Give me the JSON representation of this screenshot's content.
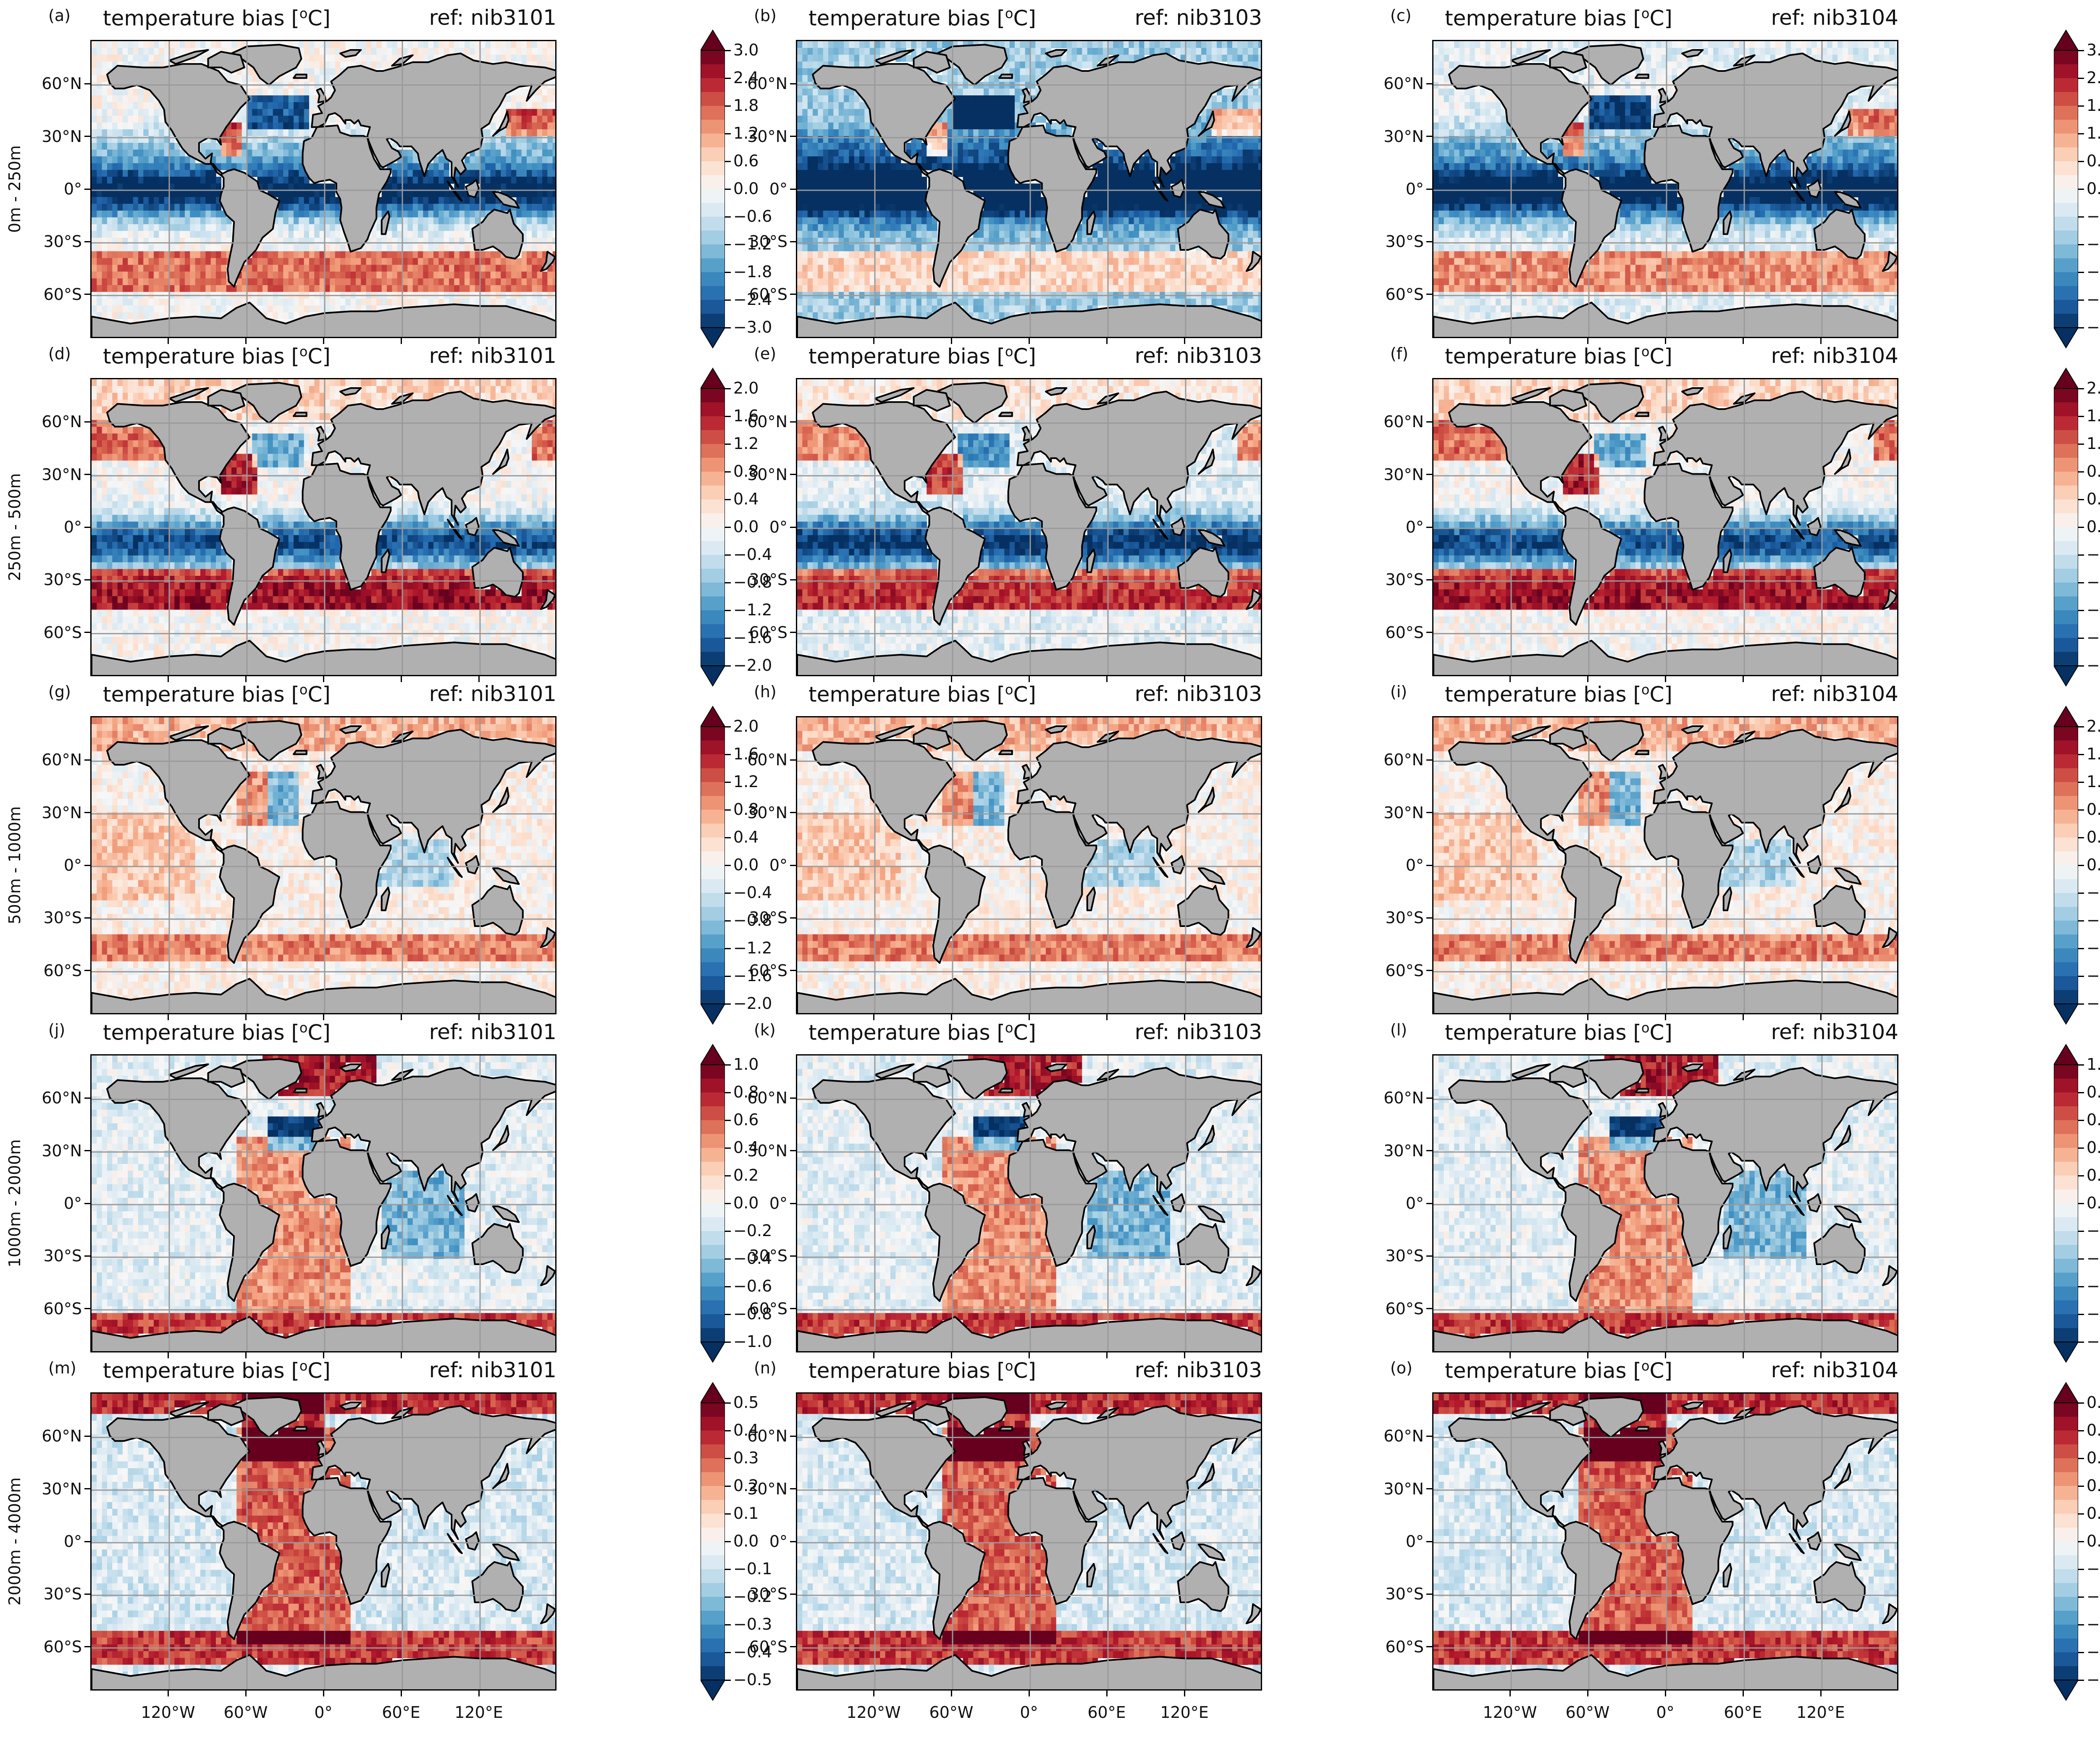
{
  "figure": {
    "panel_title": "temperature bias [",
    "unit_sup": "o",
    "unit_tail": "C]",
    "ref_prefix": "ref: ",
    "refs": [
      "nib3101",
      "nib3103",
      "nib3104"
    ],
    "panel_letters": [
      "(a)",
      "(b)",
      "(c)",
      "(d)",
      "(e)",
      "(f)",
      "(g)",
      "(h)",
      "(i)",
      "(j)",
      "(k)",
      "(l)",
      "(m)",
      "(n)",
      "(o)"
    ],
    "depth_labels": [
      "0m - 250m",
      "250m - 500m",
      "500m - 1000m",
      "1000m - 2000m",
      "2000m - 4000m"
    ],
    "lat_ticks": [
      "60°N",
      "30°N",
      "0°",
      "30°S",
      "60°S"
    ],
    "lat_values": [
      60,
      30,
      0,
      -30,
      -60
    ],
    "lon_ticks": [
      "120°W",
      "60°W",
      "0°",
      "60°E",
      "120°E"
    ],
    "lon_values": [
      -120,
      -60,
      0,
      60,
      120
    ],
    "land_color": "#b0b0b0",
    "colormap": "RdBu_r",
    "cmap_colors": [
      "#053061",
      "#2166ac",
      "#4393c3",
      "#92c5de",
      "#d1e5f0",
      "#f7f7f7",
      "#fddbc7",
      "#f4a582",
      "#d6604d",
      "#b2182b",
      "#67001f"
    ]
  },
  "chart_data": [
    {
      "type": "heatmap",
      "panel": "(a)",
      "row": 0,
      "col": 0,
      "depth": "0m - 250m",
      "ref": "nib3101",
      "colorbar": false
    },
    {
      "type": "heatmap",
      "panel": "(b)",
      "row": 0,
      "col": 1,
      "depth": "0m - 250m",
      "ref": "nib3103",
      "colorbar": true
    },
    {
      "type": "heatmap",
      "panel": "(c)",
      "row": 0,
      "col": 2,
      "depth": "0m - 250m",
      "ref": "nib3104",
      "colorbar": true
    },
    {
      "type": "heatmap",
      "panel": "(d)",
      "row": 1,
      "col": 0,
      "depth": "250m - 500m",
      "ref": "nib3101",
      "colorbar": false
    },
    {
      "type": "heatmap",
      "panel": "(e)",
      "row": 1,
      "col": 1,
      "depth": "250m - 500m",
      "ref": "nib3103",
      "colorbar": true
    },
    {
      "type": "heatmap",
      "panel": "(f)",
      "row": 1,
      "col": 2,
      "depth": "250m - 500m",
      "ref": "nib3104",
      "colorbar": true
    },
    {
      "type": "heatmap",
      "panel": "(g)",
      "row": 2,
      "col": 0,
      "depth": "500m - 1000m",
      "ref": "nib3101",
      "colorbar": false
    },
    {
      "type": "heatmap",
      "panel": "(h)",
      "row": 2,
      "col": 1,
      "depth": "500m - 1000m",
      "ref": "nib3103",
      "colorbar": true
    },
    {
      "type": "heatmap",
      "panel": "(i)",
      "row": 2,
      "col": 2,
      "depth": "500m - 1000m",
      "ref": "nib3104",
      "colorbar": true
    },
    {
      "type": "heatmap",
      "panel": "(j)",
      "row": 3,
      "col": 0,
      "depth": "1000m - 2000m",
      "ref": "nib3101",
      "colorbar": false
    },
    {
      "type": "heatmap",
      "panel": "(k)",
      "row": 3,
      "col": 1,
      "depth": "1000m - 2000m",
      "ref": "nib3103",
      "colorbar": true
    },
    {
      "type": "heatmap",
      "panel": "(l)",
      "row": 3,
      "col": 2,
      "depth": "1000m - 2000m",
      "ref": "nib3104",
      "colorbar": true
    },
    {
      "type": "heatmap",
      "panel": "(m)",
      "row": 4,
      "col": 0,
      "depth": "2000m - 4000m",
      "ref": "nib3101",
      "colorbar": false
    },
    {
      "type": "heatmap",
      "panel": "(n)",
      "row": 4,
      "col": 1,
      "depth": "2000m - 4000m",
      "ref": "nib3103",
      "colorbar": true
    },
    {
      "type": "heatmap",
      "panel": "(o)",
      "row": 4,
      "col": 2,
      "depth": "2000m - 4000m",
      "ref": "nib3104",
      "colorbar": true
    }
  ],
  "colorbars": [
    {
      "row": 0,
      "range": [
        -3.0,
        3.0
      ],
      "ticks": [
        "3.0",
        "2.4",
        "1.8",
        "1.2",
        "0.6",
        "0.0",
        "−0.6",
        "−1.2",
        "−1.8",
        "−2.4",
        "−3.0"
      ]
    },
    {
      "row": 1,
      "range": [
        -2.0,
        2.0
      ],
      "ticks": [
        "2.0",
        "1.6",
        "1.2",
        "0.8",
        "0.4",
        "0.0",
        "−0.4",
        "−0.8",
        "−1.2",
        "−1.6",
        "−2.0"
      ]
    },
    {
      "row": 2,
      "range": [
        -2.0,
        2.0
      ],
      "ticks": [
        "2.0",
        "1.6",
        "1.2",
        "0.8",
        "0.4",
        "0.0",
        "−0.4",
        "−0.8",
        "−1.2",
        "−1.6",
        "−2.0"
      ]
    },
    {
      "row": 3,
      "range": [
        -1.0,
        1.0
      ],
      "ticks": [
        "1.0",
        "0.8",
        "0.6",
        "0.4",
        "0.2",
        "0.0",
        "−0.2",
        "−0.4",
        "−0.6",
        "−0.8",
        "−1.0"
      ]
    },
    {
      "row": 4,
      "range": [
        -0.5,
        0.5
      ],
      "ticks": [
        "0.5",
        "0.4",
        "0.3",
        "0.2",
        "0.1",
        "0.0",
        "−0.1",
        "−0.2",
        "−0.3",
        "−0.4",
        "−0.5"
      ]
    }
  ]
}
